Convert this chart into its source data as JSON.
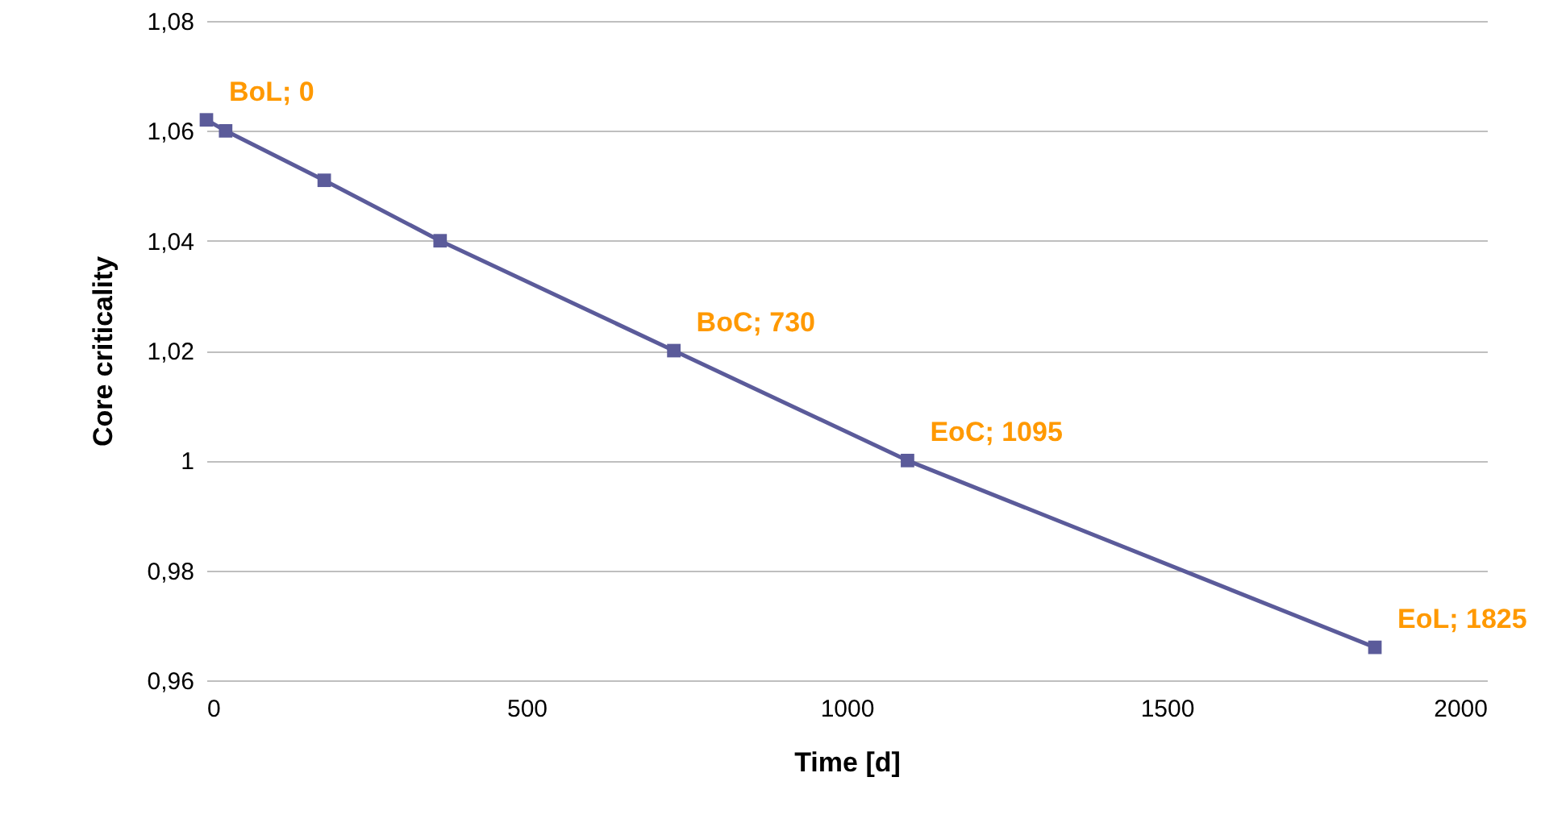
{
  "chart_data": {
    "type": "line",
    "xlabel": "Time [d]",
    "ylabel": "Core criticality",
    "x": [
      0,
      30,
      184,
      365,
      730,
      1095,
      1825
    ],
    "series": [
      {
        "color": "#5b5b9a",
        "values": [
          1.062,
          1.06,
          1.051,
          1.04,
          1.02,
          1.0,
          0.966
        ]
      }
    ],
    "xlim": [
      0,
      2000
    ],
    "xticks": [
      0,
      500,
      1000,
      1500,
      2000
    ],
    "ylim": [
      0.96,
      1.08
    ],
    "yticks": [
      {
        "value": 0.96,
        "label": "0,96"
      },
      {
        "value": 0.98,
        "label": "0,98"
      },
      {
        "value": 1,
        "label": "1"
      },
      {
        "value": 1.02,
        "label": "1,02"
      },
      {
        "value": 1.04,
        "label": "1,04"
      },
      {
        "value": 1.06,
        "label": "1,06"
      },
      {
        "value": 1.08,
        "label": "1,08"
      }
    ],
    "grid": "y",
    "marker": "square",
    "line_style": "solid",
    "annotations": [
      {
        "text": "BoL; 0",
        "x": 0,
        "y": 1.062
      },
      {
        "text": "BoC; 730",
        "x": 730,
        "y": 1.02
      },
      {
        "text": "EoC; 1095",
        "x": 1095,
        "y": 1.0
      },
      {
        "text": "EoL; 1825",
        "x": 1825,
        "y": 0.966
      }
    ]
  }
}
